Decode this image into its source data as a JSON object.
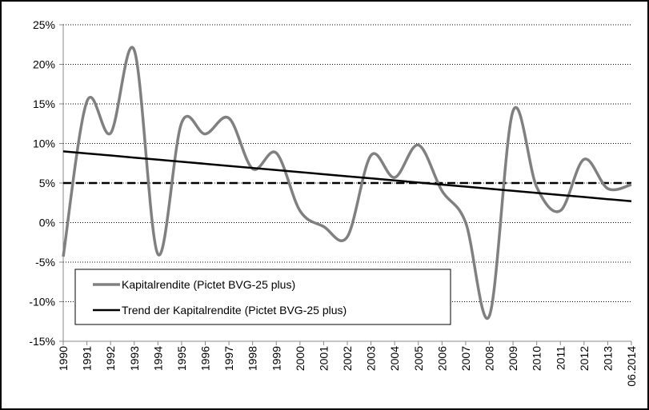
{
  "chart_data": {
    "type": "line",
    "categories": [
      "1990",
      "1991",
      "1992",
      "1993",
      "1994",
      "1995",
      "1996",
      "1997",
      "1998",
      "1999",
      "2000",
      "2001",
      "2002",
      "2003",
      "2004",
      "2005",
      "2006",
      "2007",
      "2008",
      "2009",
      "2010",
      "2011",
      "2012",
      "2013",
      "06.2014"
    ],
    "series": [
      {
        "name": "Kapitalrendite (Pictet BVG-25 plus)",
        "color": "#808080",
        "smooth": true,
        "values": [
          -4.3,
          15.3,
          11.3,
          21.8,
          -4.0,
          12.6,
          11.2,
          13.2,
          6.8,
          8.8,
          1.5,
          -0.5,
          -1.8,
          8.5,
          5.7,
          9.8,
          4.0,
          0.0,
          -11.8,
          14.1,
          4.5,
          1.5,
          8.0,
          4.3,
          4.8
        ]
      },
      {
        "name": "Trend der Kapitalrendite (Pictet BVG-25 plus)",
        "color": "#000000",
        "smooth": false,
        "values": [
          9.0,
          8.74,
          8.48,
          8.21,
          7.95,
          7.69,
          7.43,
          7.16,
          6.9,
          6.64,
          6.38,
          6.11,
          5.85,
          5.59,
          5.33,
          5.06,
          4.8,
          4.54,
          4.28,
          4.01,
          3.75,
          3.49,
          3.23,
          2.96,
          2.7
        ]
      }
    ],
    "hline": 5,
    "ylim": [
      -15,
      25
    ],
    "yticks": [
      {
        "value": -15,
        "label": "-15%"
      },
      {
        "value": -10,
        "label": "-10%"
      },
      {
        "value": -5,
        "label": "-5%"
      },
      {
        "value": 0,
        "label": "0%"
      },
      {
        "value": 5,
        "label": "5%"
      },
      {
        "value": 10,
        "label": "10%"
      },
      {
        "value": 15,
        "label": "15%"
      },
      {
        "value": 20,
        "label": "20%"
      },
      {
        "value": 25,
        "label": "25%"
      }
    ],
    "grid": true,
    "legend": "lower left"
  }
}
